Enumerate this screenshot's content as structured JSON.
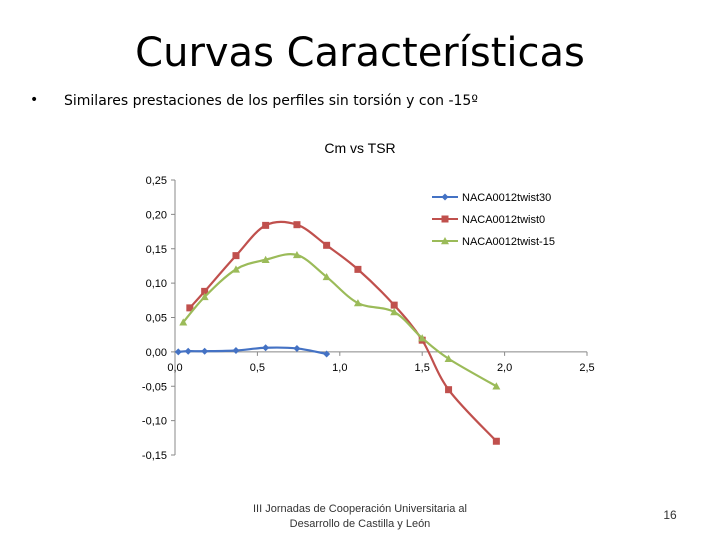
{
  "slide": {
    "title": "Curvas Características",
    "bullet": "Similares prestaciones de los perfiles sin torsión y con -15º",
    "footer_line1": "III Jornadas de Cooperación Universitaria al",
    "footer_line2": "Desarrollo de Castilla y León",
    "page_number": "16"
  },
  "chart_data": {
    "type": "scatter",
    "title": "Cm vs TSR",
    "xlabel": "",
    "ylabel": "",
    "xlim": [
      0,
      2.5
    ],
    "ylim": [
      -0.15,
      0.25
    ],
    "x_ticks": [
      "0,0",
      "0,5",
      "1,0",
      "1,5",
      "2,0",
      "2,5"
    ],
    "y_ticks": [
      "0,25",
      "0,20",
      "0,15",
      "0,10",
      "0,05",
      "0,00",
      "-0,05",
      "-0,10",
      "-0,15"
    ],
    "legend_position": "top-right",
    "grid": false,
    "series": [
      {
        "name": "NACA0012twist30",
        "color": "#4472C4",
        "marker": "diamond",
        "x": [
          0.02,
          0.08,
          0.18,
          0.37,
          0.55,
          0.74,
          0.92
        ],
        "y": [
          0.0,
          0.001,
          0.001,
          0.002,
          0.006,
          0.005,
          -0.003
        ]
      },
      {
        "name": "NACA0012twist0",
        "color": "#C0504D",
        "marker": "square",
        "x": [
          0.09,
          0.18,
          0.37,
          0.55,
          0.74,
          0.92,
          1.11,
          1.33,
          1.5,
          1.66,
          1.95
        ],
        "y": [
          0.064,
          0.088,
          0.14,
          0.184,
          0.185,
          0.155,
          0.12,
          0.068,
          0.017,
          -0.055,
          -0.13
        ]
      },
      {
        "name": "NACA0012twist-15",
        "color": "#9BBB59",
        "marker": "triangle",
        "x": [
          0.05,
          0.18,
          0.37,
          0.55,
          0.74,
          0.92,
          1.11,
          1.33,
          1.5,
          1.66,
          1.95
        ],
        "y": [
          0.043,
          0.08,
          0.12,
          0.134,
          0.141,
          0.109,
          0.071,
          0.058,
          0.02,
          -0.01,
          -0.05
        ]
      }
    ]
  }
}
